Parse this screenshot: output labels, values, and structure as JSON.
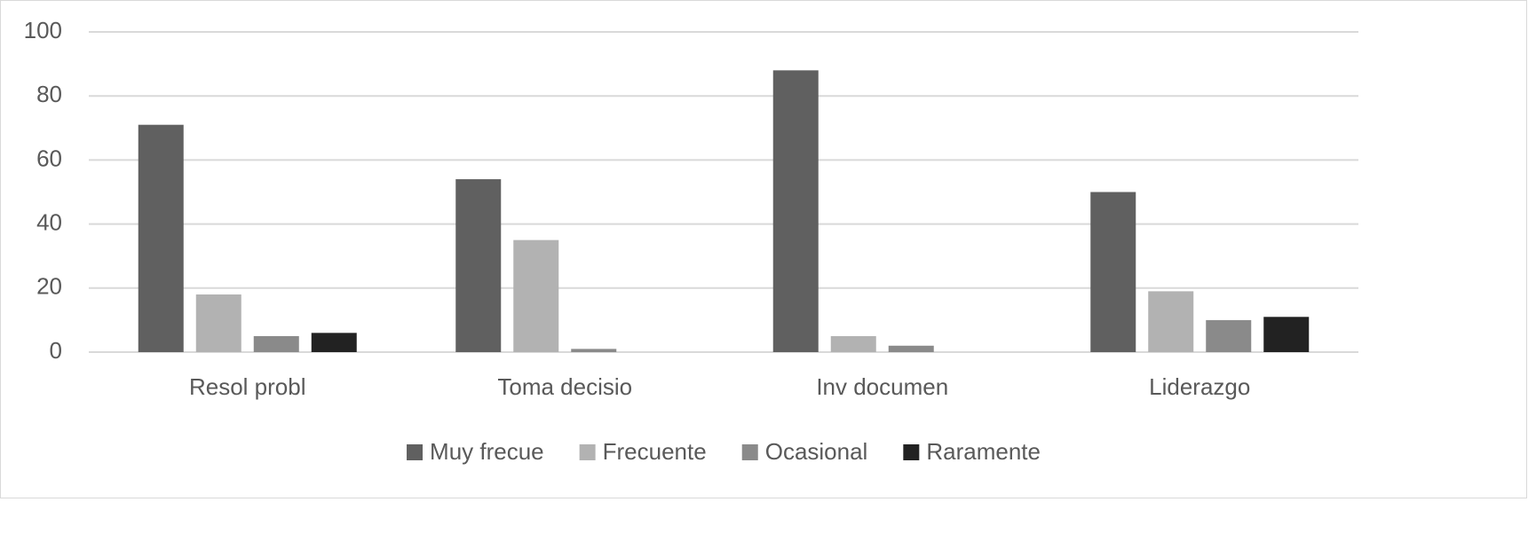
{
  "chart_data": {
    "type": "bar",
    "categories": [
      "Resol probl",
      "Toma decisio",
      "Inv documen",
      "Liderazgo"
    ],
    "series": [
      {
        "name": "Muy frecue",
        "color": "#606060",
        "values": [
          71,
          54,
          88,
          50
        ]
      },
      {
        "name": "Frecuente",
        "color": "#b2b2b2",
        "values": [
          18,
          35,
          5,
          19
        ]
      },
      {
        "name": "Ocasional",
        "color": "#8a8a8a",
        "values": [
          5,
          1,
          2,
          10
        ]
      },
      {
        "name": "Raramente",
        "color": "#222222",
        "values": [
          6,
          0,
          0,
          11
        ]
      }
    ],
    "ylim": [
      0,
      100
    ],
    "yticks": [
      0,
      20,
      40,
      60,
      80,
      100
    ],
    "grid": true,
    "legend": "bottom"
  }
}
